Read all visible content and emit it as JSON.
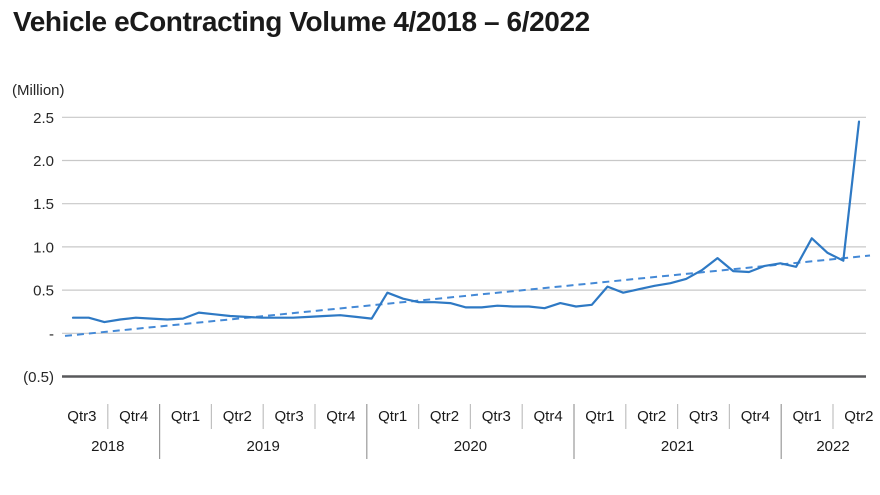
{
  "title": "Vehicle eContracting Volume 4/2018 – 6/2022",
  "chart_data": {
    "type": "line",
    "title": "Vehicle eContracting Volume 4/2018 – 6/2022",
    "y_unit_label": "(Million)",
    "ylim": [
      -0.5,
      2.5
    ],
    "grid": true,
    "legend_position": "none",
    "y_ticks": [
      {
        "label": "2.5",
        "value": 2.5
      },
      {
        "label": "2.0",
        "value": 2.0
      },
      {
        "label": "1.5",
        "value": 1.5
      },
      {
        "label": "1.0",
        "value": 1.0
      },
      {
        "label": "0.5",
        "value": 0.5
      },
      {
        "label": "-",
        "value": 0.0
      },
      {
        "label": "(0.5)",
        "value": -0.5
      }
    ],
    "x_groups": [
      {
        "year": "2018",
        "quarters": [
          "Qtr3",
          "Qtr4"
        ]
      },
      {
        "year": "2019",
        "quarters": [
          "Qtr1",
          "Qtr2",
          "Qtr3",
          "Qtr4"
        ]
      },
      {
        "year": "2020",
        "quarters": [
          "Qtr1",
          "Qtr2",
          "Qtr3",
          "Qtr4"
        ]
      },
      {
        "year": "2021",
        "quarters": [
          "Qtr1",
          "Qtr2",
          "Qtr3",
          "Qtr4"
        ]
      },
      {
        "year": "2022",
        "quarters": [
          "Qtr1",
          "Qtr2"
        ]
      }
    ],
    "series": [
      {
        "name": "monthly-volume",
        "style": "solid",
        "color": "#2e79c4",
        "period": "monthly, 4/2018 through 6/2022",
        "values": [
          0.18,
          0.18,
          0.13,
          0.16,
          0.18,
          0.17,
          0.16,
          0.17,
          0.24,
          0.22,
          0.2,
          0.19,
          0.18,
          0.18,
          0.18,
          0.19,
          0.2,
          0.21,
          0.19,
          0.17,
          0.47,
          0.4,
          0.36,
          0.36,
          0.35,
          0.3,
          0.3,
          0.32,
          0.31,
          0.31,
          0.29,
          0.35,
          0.31,
          0.33,
          0.54,
          0.47,
          0.51,
          0.55,
          0.58,
          0.63,
          0.73,
          0.87,
          0.72,
          0.71,
          0.78,
          0.81,
          0.77,
          1.1,
          0.93,
          0.84,
          2.45
        ]
      },
      {
        "name": "linear-trend",
        "style": "dashed",
        "color": "#4489d6",
        "start_value": -0.03,
        "end_value": 0.9
      }
    ],
    "colors": {
      "gridline": "#c8c8c8",
      "bottom_rule": "#58595b",
      "separator": "#c0c0c0",
      "year_divider": "#999999"
    }
  }
}
